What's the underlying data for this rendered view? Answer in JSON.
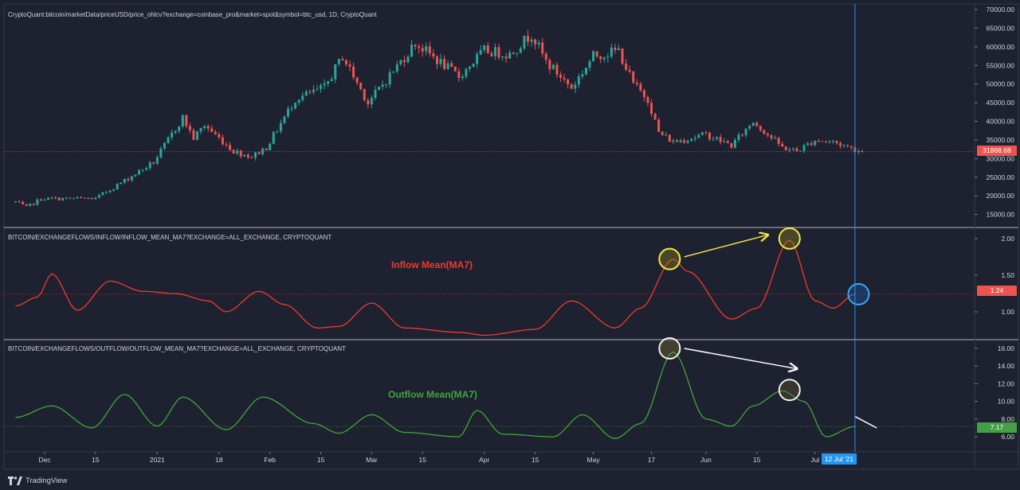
{
  "panes": {
    "price": {
      "title": "CryptoQuant:bitcoin/marketData/priceUSD/price_ohlcv?exchange=coinbase_pro&market=spot&symbol=btc_usd, 1D, CryptoQuant",
      "badge": "31868.68"
    },
    "inflow": {
      "title": "BITCOIN/EXCHANGEFLOWS/INFLOW/INFLOW_MEAN_MA7?EXCHANGE=ALL_EXCHANGE, CRYPTOQUANT",
      "label": "Inflow Mean(MA7)",
      "badge": "1.24"
    },
    "outflow": {
      "title": "BITCOIN/EXCHANGEFLOWS/OUTFLOW/OUTFLOW_MEAN_MA7?EXCHANGE=ALL_EXCHANGE, CRYPTOQUANT",
      "label": "Outflow Mean(MA7)",
      "badge": "7.17"
    }
  },
  "crosshair_label": "12 Jul '21",
  "footer": {
    "brand": "TradingView"
  },
  "colors": {
    "background": "#1e2130",
    "up": "#26a69a",
    "down": "#ef5350",
    "inflow": "#ef3b2c",
    "outflow": "#3fa639",
    "crosshair": "#2196f3",
    "grid": "#2a2e39",
    "axis_text": "#d1d4dc"
  },
  "chart_data": [
    {
      "type": "candlestick",
      "title": "CryptoQuant:bitcoin/marketData/priceUSD/price_ohlcv?exchange=coinbase_pro&market=spot&symbol=btc_usd, 1D, CryptoQuant",
      "x_ticks": [
        "Dec",
        "15",
        "2021",
        "18",
        "Feb",
        "15",
        "Mar",
        "15",
        "Apr",
        "15",
        "May",
        "17",
        "Jun",
        "15",
        "Jul"
      ],
      "y_ticks": [
        15000,
        20000,
        25000,
        30000,
        35000,
        40000,
        45000,
        50000,
        55000,
        60000,
        65000,
        70000
      ],
      "ylim": [
        11500,
        71500
      ],
      "last_value": 31868.68,
      "close_anchors": [
        {
          "date": "2020-11-23",
          "close": 18400
        },
        {
          "date": "2020-11-26",
          "close": 16900
        },
        {
          "date": "2020-11-30",
          "close": 19200
        },
        {
          "date": "2020-12-15",
          "close": 19300
        },
        {
          "date": "2020-12-22",
          "close": 23500
        },
        {
          "date": "2020-12-31",
          "close": 29000
        },
        {
          "date": "2021-01-08",
          "close": 41000
        },
        {
          "date": "2021-01-11",
          "close": 35500
        },
        {
          "date": "2021-01-14",
          "close": 39000
        },
        {
          "date": "2021-01-22",
          "close": 32000
        },
        {
          "date": "2021-01-27",
          "close": 30500
        },
        {
          "date": "2021-01-31",
          "close": 33000
        },
        {
          "date": "2021-02-08",
          "close": 46000
        },
        {
          "date": "2021-02-16",
          "close": 49000
        },
        {
          "date": "2021-02-21",
          "close": 57500
        },
        {
          "date": "2021-02-28",
          "close": 45000
        },
        {
          "date": "2021-03-13",
          "close": 61000
        },
        {
          "date": "2021-03-25",
          "close": 52000
        },
        {
          "date": "2021-04-01",
          "close": 59000
        },
        {
          "date": "2021-04-08",
          "close": 58000
        },
        {
          "date": "2021-04-14",
          "close": 63500
        },
        {
          "date": "2021-04-18",
          "close": 56000
        },
        {
          "date": "2021-04-25",
          "close": 49000
        },
        {
          "date": "2021-05-01",
          "close": 57500
        },
        {
          "date": "2021-05-08",
          "close": 59000
        },
        {
          "date": "2021-05-12",
          "close": 50000
        },
        {
          "date": "2021-05-16",
          "close": 46000
        },
        {
          "date": "2021-05-19",
          "close": 37000
        },
        {
          "date": "2021-05-23",
          "close": 34500
        },
        {
          "date": "2021-06-01",
          "close": 36500
        },
        {
          "date": "2021-06-08",
          "close": 33500
        },
        {
          "date": "2021-06-14",
          "close": 40000
        },
        {
          "date": "2021-06-22",
          "close": 33000
        },
        {
          "date": "2021-06-26",
          "close": 32000
        },
        {
          "date": "2021-07-01",
          "close": 35000
        },
        {
          "date": "2021-07-06",
          "close": 34500
        },
        {
          "date": "2021-07-12",
          "close": 32500
        },
        {
          "date": "2021-07-14",
          "close": 31868.68
        }
      ]
    },
    {
      "type": "line",
      "title": "BITCOIN/EXCHANGEFLOWS/INFLOW/INFLOW_MEAN_MA7?EXCHANGE=ALL_EXCHANGE, CRYPTOQUANT",
      "series_name": "Inflow Mean(MA7)",
      "y_ticks": [
        1.0,
        1.5,
        2.0
      ],
      "ylim": [
        0.62,
        2.14
      ],
      "last_value": 1.24,
      "points": [
        {
          "date": "2020-11-23",
          "value": 1.08
        },
        {
          "date": "2020-11-29",
          "value": 1.2
        },
        {
          "date": "2020-12-03",
          "value": 1.52
        },
        {
          "date": "2020-12-10",
          "value": 1.02
        },
        {
          "date": "2020-12-19",
          "value": 1.42
        },
        {
          "date": "2020-12-28",
          "value": 1.28
        },
        {
          "date": "2021-01-06",
          "value": 1.25
        },
        {
          "date": "2021-01-15",
          "value": 1.15
        },
        {
          "date": "2021-01-20",
          "value": 1.0
        },
        {
          "date": "2021-01-29",
          "value": 1.28
        },
        {
          "date": "2021-02-05",
          "value": 1.1
        },
        {
          "date": "2021-02-14",
          "value": 0.78
        },
        {
          "date": "2021-02-20",
          "value": 0.8
        },
        {
          "date": "2021-03-01",
          "value": 1.12
        },
        {
          "date": "2021-03-10",
          "value": 0.78
        },
        {
          "date": "2021-03-25",
          "value": 0.72
        },
        {
          "date": "2021-04-01",
          "value": 0.68
        },
        {
          "date": "2021-04-15",
          "value": 0.76
        },
        {
          "date": "2021-04-25",
          "value": 1.15
        },
        {
          "date": "2021-05-07",
          "value": 0.78
        },
        {
          "date": "2021-05-14",
          "value": 1.05
        },
        {
          "date": "2021-05-23",
          "value": 1.72
        },
        {
          "date": "2021-05-27",
          "value": 1.55
        },
        {
          "date": "2021-06-08",
          "value": 0.9
        },
        {
          "date": "2021-06-15",
          "value": 1.05
        },
        {
          "date": "2021-06-24",
          "value": 1.98
        },
        {
          "date": "2021-07-01",
          "value": 1.15
        },
        {
          "date": "2021-07-06",
          "value": 1.05
        },
        {
          "date": "2021-07-12",
          "value": 1.24
        }
      ]
    },
    {
      "type": "line",
      "title": "BITCOIN/EXCHANGEFLOWS/OUTFLOW/OUTFLOW_MEAN_MA7?EXCHANGE=ALL_EXCHANGE, CRYPTOQUANT",
      "series_name": "Outflow Mean(MA7)",
      "y_ticks": [
        6.0,
        8.0,
        10.0,
        12.0,
        14.0,
        16.0
      ],
      "ylim": [
        4.3,
        16.9
      ],
      "last_value": 7.17,
      "points": [
        {
          "date": "2020-11-23",
          "value": 8.2
        },
        {
          "date": "2020-12-03",
          "value": 9.5
        },
        {
          "date": "2020-12-14",
          "value": 7.0
        },
        {
          "date": "2020-12-23",
          "value": 10.8
        },
        {
          "date": "2021-01-01",
          "value": 7.2
        },
        {
          "date": "2021-01-08",
          "value": 10.5
        },
        {
          "date": "2021-01-20",
          "value": 6.8
        },
        {
          "date": "2021-01-30",
          "value": 10.5
        },
        {
          "date": "2021-02-13",
          "value": 7.5
        },
        {
          "date": "2021-02-20",
          "value": 6.4
        },
        {
          "date": "2021-03-01",
          "value": 8.5
        },
        {
          "date": "2021-03-10",
          "value": 6.5
        },
        {
          "date": "2021-03-25",
          "value": 6.0
        },
        {
          "date": "2021-03-30",
          "value": 9.0
        },
        {
          "date": "2021-04-06",
          "value": 6.3
        },
        {
          "date": "2021-04-20",
          "value": 6.0
        },
        {
          "date": "2021-04-28",
          "value": 8.5
        },
        {
          "date": "2021-05-07",
          "value": 5.8
        },
        {
          "date": "2021-05-14",
          "value": 7.5
        },
        {
          "date": "2021-05-23",
          "value": 15.6
        },
        {
          "date": "2021-06-01",
          "value": 8.0
        },
        {
          "date": "2021-06-08",
          "value": 7.2
        },
        {
          "date": "2021-06-14",
          "value": 9.5
        },
        {
          "date": "2021-06-22",
          "value": 11.2
        },
        {
          "date": "2021-06-28",
          "value": 10.0
        },
        {
          "date": "2021-07-04",
          "value": 6.0
        },
        {
          "date": "2021-07-12",
          "value": 7.17
        }
      ]
    }
  ]
}
